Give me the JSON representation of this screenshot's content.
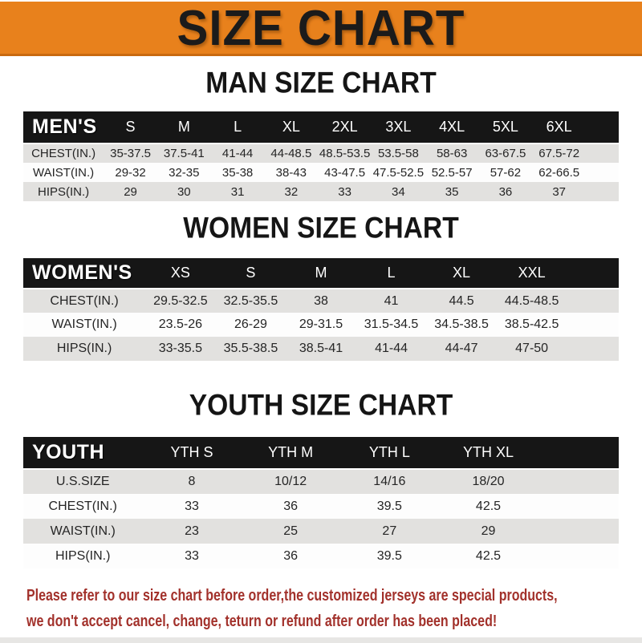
{
  "title": "SIZE CHART",
  "chart_data": [
    {
      "type": "table",
      "id": "men",
      "title": "MAN SIZE CHART",
      "corner_label": "MEN'S",
      "columns": [
        "S",
        "M",
        "L",
        "XL",
        "2XL",
        "3XL",
        "4XL",
        "5XL",
        "6XL"
      ],
      "rows": [
        {
          "label": "CHEST(IN.)",
          "values": [
            "35-37.5",
            "37.5-41",
            "41-44",
            "44-48.5",
            "48.5-53.5",
            "53.5-58",
            "58-63",
            "63-67.5",
            "67.5-72"
          ]
        },
        {
          "label": "WAIST(IN.)",
          "values": [
            "29-32",
            "32-35",
            "35-38",
            "38-43",
            "43-47.5",
            "47.5-52.5",
            "52.5-57",
            "57-62",
            "62-66.5"
          ]
        },
        {
          "label": "HIPS(IN.)",
          "values": [
            "29",
            "30",
            "31",
            "32",
            "33",
            "34",
            "35",
            "36",
            "37"
          ]
        }
      ]
    },
    {
      "type": "table",
      "id": "women",
      "title": "WOMEN SIZE CHART",
      "corner_label": "WOMEN'S",
      "columns": [
        "XS",
        "S",
        "M",
        "L",
        "XL",
        "XXL"
      ],
      "rows": [
        {
          "label": "CHEST(IN.)",
          "values": [
            "29.5-32.5",
            "32.5-35.5",
            "38",
            "41",
            "44.5",
            "44.5-48.5"
          ]
        },
        {
          "label": "WAIST(IN.)",
          "values": [
            "23.5-26",
            "26-29",
            "29-31.5",
            "31.5-34.5",
            "34.5-38.5",
            "38.5-42.5"
          ]
        },
        {
          "label": "HIPS(IN.)",
          "values": [
            "33-35.5",
            "35.5-38.5",
            "38.5-41",
            "41-44",
            "44-47",
            "47-50"
          ]
        }
      ]
    },
    {
      "type": "table",
      "id": "youth",
      "title": "YOUTH SIZE CHART",
      "corner_label": "YOUTH",
      "columns": [
        "YTH S",
        "YTH M",
        "YTH L",
        "YTH XL"
      ],
      "rows": [
        {
          "label": "U.S.SIZE",
          "values": [
            "8",
            "10/12",
            "14/16",
            "18/20"
          ]
        },
        {
          "label": "CHEST(IN.)",
          "values": [
            "33",
            "36",
            "39.5",
            "42.5"
          ]
        },
        {
          "label": "WAIST(IN.)",
          "values": [
            "23",
            "25",
            "27",
            "29"
          ]
        },
        {
          "label": "HIPS(IN.)",
          "values": [
            "33",
            "36",
            "39.5",
            "42.5"
          ]
        }
      ]
    }
  ],
  "footer": {
    "line1": "Please refer to our size chart before order,the customized jerseys are special products,",
    "line2": "we don't accept cancel, change, teturn or refund after order has been placed!"
  },
  "colors": {
    "banner_orange": "#E8811C",
    "banner_border": "#C96A10",
    "header_black": "#161616",
    "row_gray": "#E2E1DF",
    "row_white": "#FDFDFD",
    "footer_red": "#A2312B"
  }
}
